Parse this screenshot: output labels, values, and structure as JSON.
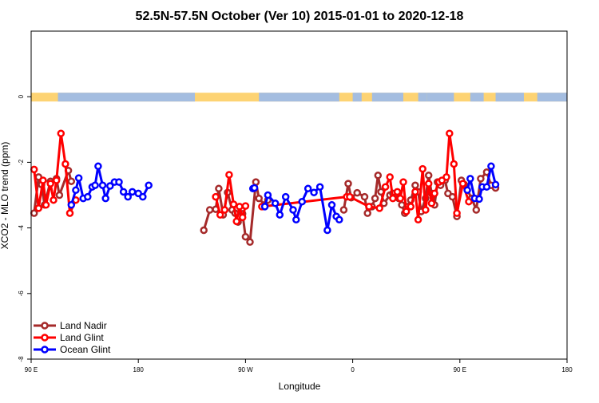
{
  "chart_data": {
    "type": "line",
    "title": "52.5N-57.5N October (Ver 10)   2015-01-01 to 2020-12-18",
    "xlabel": "Longitude",
    "ylabel": "XCO2 - MLO trend (ppm)",
    "xlim": [
      90,
      450
    ],
    "ylim": [
      -8,
      2
    ],
    "x_ticks": [
      {
        "value": 90,
        "label": "90 E"
      },
      {
        "value": 162,
        "label": "180"
      },
      {
        "value": 234,
        "label": "90 W"
      },
      {
        "value": 306,
        "label": "0"
      },
      {
        "value": 378,
        "label": "90 E"
      },
      {
        "value": 450,
        "label": "180"
      }
    ],
    "y_ticks": [
      {
        "value": 0,
        "label": "0"
      },
      {
        "value": -2,
        "label": "-2"
      },
      {
        "value": -4,
        "label": "-4"
      },
      {
        "value": -6,
        "label": "-6"
      },
      {
        "value": -8,
        "label": "-8"
      }
    ],
    "legend_position": "bottom-left",
    "map_strip": {
      "y_center": 0,
      "land_color": "#fdd373",
      "ocean_color": "#a4bde0"
    },
    "series": [
      {
        "name": "Land Nadir",
        "color": "#a52a2a",
        "segments": [
          [
            [
              92,
              -3.55
            ],
            [
              95,
              -2.45
            ],
            [
              97,
              -2.68
            ],
            [
              99,
              -3.3
            ],
            [
              103,
              -2.58
            ],
            [
              107,
              -2.5
            ],
            [
              109,
              -3.0
            ],
            [
              115,
              -2.25
            ],
            [
              117,
              -2.58
            ]
          ],
          [
            [
              206,
              -4.07
            ],
            [
              210,
              -3.45
            ],
            [
              214,
              -3.43
            ],
            [
              216,
              -2.8
            ],
            [
              219,
              -3.6
            ],
            [
              222,
              -2.92
            ],
            [
              225,
              -3.45
            ],
            [
              227,
              -3.55
            ],
            [
              229,
              -3.82
            ],
            [
              232,
              -3.57
            ],
            [
              234,
              -4.27
            ],
            [
              237,
              -4.43
            ],
            [
              241,
              -2.6
            ],
            [
              243,
              -3.1
            ],
            [
              247,
              -3.3
            ],
            [
              249,
              -3.15
            ]
          ],
          [
            [
              300,
              -3.45
            ],
            [
              303,
              -2.65
            ],
            [
              305,
              -3.08
            ],
            [
              309,
              -2.93
            ],
            [
              314,
              -3.05
            ],
            [
              316,
              -3.55
            ],
            [
              319,
              -3.35
            ],
            [
              321,
              -3.1
            ],
            [
              323,
              -2.4
            ],
            [
              325,
              -2.9
            ],
            [
              327,
              -3.25
            ],
            [
              331,
              -3.0
            ],
            [
              333,
              -2.95
            ],
            [
              335,
              -3.05
            ],
            [
              337,
              -3.1
            ],
            [
              339,
              -3.3
            ],
            [
              341,
              -3.55
            ],
            [
              343,
              -3.35
            ],
            [
              345,
              -3.15
            ],
            [
              348,
              -2.7
            ],
            [
              350,
              -2.9
            ],
            [
              352,
              -3.5
            ],
            [
              355,
              -3.1
            ],
            [
              357,
              -2.4
            ],
            [
              359,
              -2.95
            ],
            [
              361,
              -3.3
            ],
            [
              363,
              -2.6
            ],
            [
              365,
              -2.7
            ],
            [
              368,
              -2.55
            ],
            [
              370,
              -2.95
            ],
            [
              373,
              -3.05
            ],
            [
              376,
              -3.65
            ],
            [
              379,
              -2.55
            ],
            [
              381,
              -2.68
            ],
            [
              386,
              -3.1
            ],
            [
              389,
              -3.45
            ],
            [
              392,
              -2.5
            ],
            [
              396,
              -2.3
            ],
            [
              399,
              -2.7
            ],
            [
              402,
              -2.78
            ]
          ]
        ]
      },
      {
        "name": "Land Glint",
        "color": "#ff0000",
        "segments": [
          [
            [
              92,
              -2.22
            ],
            [
              95,
              -3.4
            ],
            [
              98,
              -2.55
            ],
            [
              100,
              -3.3
            ],
            [
              103,
              -2.65
            ],
            [
              105,
              -3.15
            ],
            [
              107,
              -2.55
            ],
            [
              110,
              -1.12
            ],
            [
              113,
              -2.05
            ],
            [
              116,
              -3.55
            ],
            [
              120,
              -3.15
            ]
          ],
          [
            [
              214,
              -3.05
            ],
            [
              217,
              -3.6
            ],
            [
              220,
              -3.45
            ],
            [
              223,
              -2.38
            ],
            [
              226,
              -3.28
            ],
            [
              228,
              -3.8
            ],
            [
              230,
              -3.35
            ],
            [
              232,
              -3.68
            ],
            [
              234,
              -3.33
            ]
          ],
          [
            [
              245,
              -3.35
            ],
            [
              302,
              -3.05
            ],
            [
              304,
              -3.05
            ],
            [
              317,
              -3.35
            ],
            [
              324,
              -3.4
            ],
            [
              328,
              -2.75
            ],
            [
              331,
              -2.45
            ],
            [
              333,
              -3.1
            ],
            [
              336,
              -2.9
            ],
            [
              338,
              -3.1
            ],
            [
              340,
              -2.6
            ],
            [
              342,
              -3.5
            ],
            [
              345,
              -3.35
            ],
            [
              348,
              -2.9
            ],
            [
              350,
              -3.75
            ],
            [
              353,
              -2.2
            ],
            [
              355,
              -3.45
            ],
            [
              357,
              -2.65
            ],
            [
              359,
              -3.25
            ],
            [
              361,
              -2.95
            ],
            [
              364,
              -2.6
            ],
            [
              366,
              -2.55
            ],
            [
              369,
              -2.45
            ],
            [
              371,
              -1.12
            ],
            [
              374,
              -2.05
            ],
            [
              376,
              -3.55
            ],
            [
              380,
              -2.65
            ],
            [
              384,
              -3.2
            ]
          ]
        ]
      },
      {
        "name": "Ocean Glint",
        "color": "#0000ff",
        "segments": [
          [
            [
              117,
              -3.3
            ],
            [
              120,
              -2.85
            ],
            [
              122,
              -2.48
            ],
            [
              125,
              -3.1
            ],
            [
              128,
              -3.05
            ],
            [
              131,
              -2.75
            ],
            [
              133,
              -2.7
            ],
            [
              135,
              -2.12
            ],
            [
              138,
              -2.7
            ],
            [
              140,
              -3.1
            ],
            [
              143,
              -2.72
            ],
            [
              146,
              -2.6
            ],
            [
              149,
              -2.6
            ],
            [
              152,
              -2.9
            ],
            [
              155,
              -3.05
            ],
            [
              158,
              -2.9
            ],
            [
              162,
              -2.95
            ],
            [
              165,
              -3.05
            ],
            [
              169,
              -2.7
            ]
          ],
          [
            [
              239,
              -2.8
            ],
            [
              240,
              -2.78
            ]
          ],
          [
            [
              247,
              -3.35
            ],
            [
              249,
              -3.0
            ],
            [
              254,
              -3.25
            ],
            [
              257,
              -3.6
            ],
            [
              261,
              -3.05
            ],
            [
              266,
              -3.45
            ],
            [
              268,
              -3.75
            ],
            [
              272,
              -3.2
            ],
            [
              276,
              -2.8
            ],
            [
              280,
              -2.92
            ],
            [
              284,
              -2.75
            ],
            [
              289,
              -4.07
            ],
            [
              292,
              -3.3
            ],
            [
              295,
              -3.65
            ],
            [
              297,
              -3.75
            ]
          ],
          [
            [
              383,
              -2.85
            ],
            [
              385,
              -2.5
            ],
            [
              388,
              -3.1
            ],
            [
              391,
              -3.12
            ],
            [
              393,
              -2.75
            ],
            [
              396,
              -2.75
            ],
            [
              399,
              -2.12
            ],
            [
              402,
              -2.68
            ]
          ]
        ]
      }
    ]
  }
}
